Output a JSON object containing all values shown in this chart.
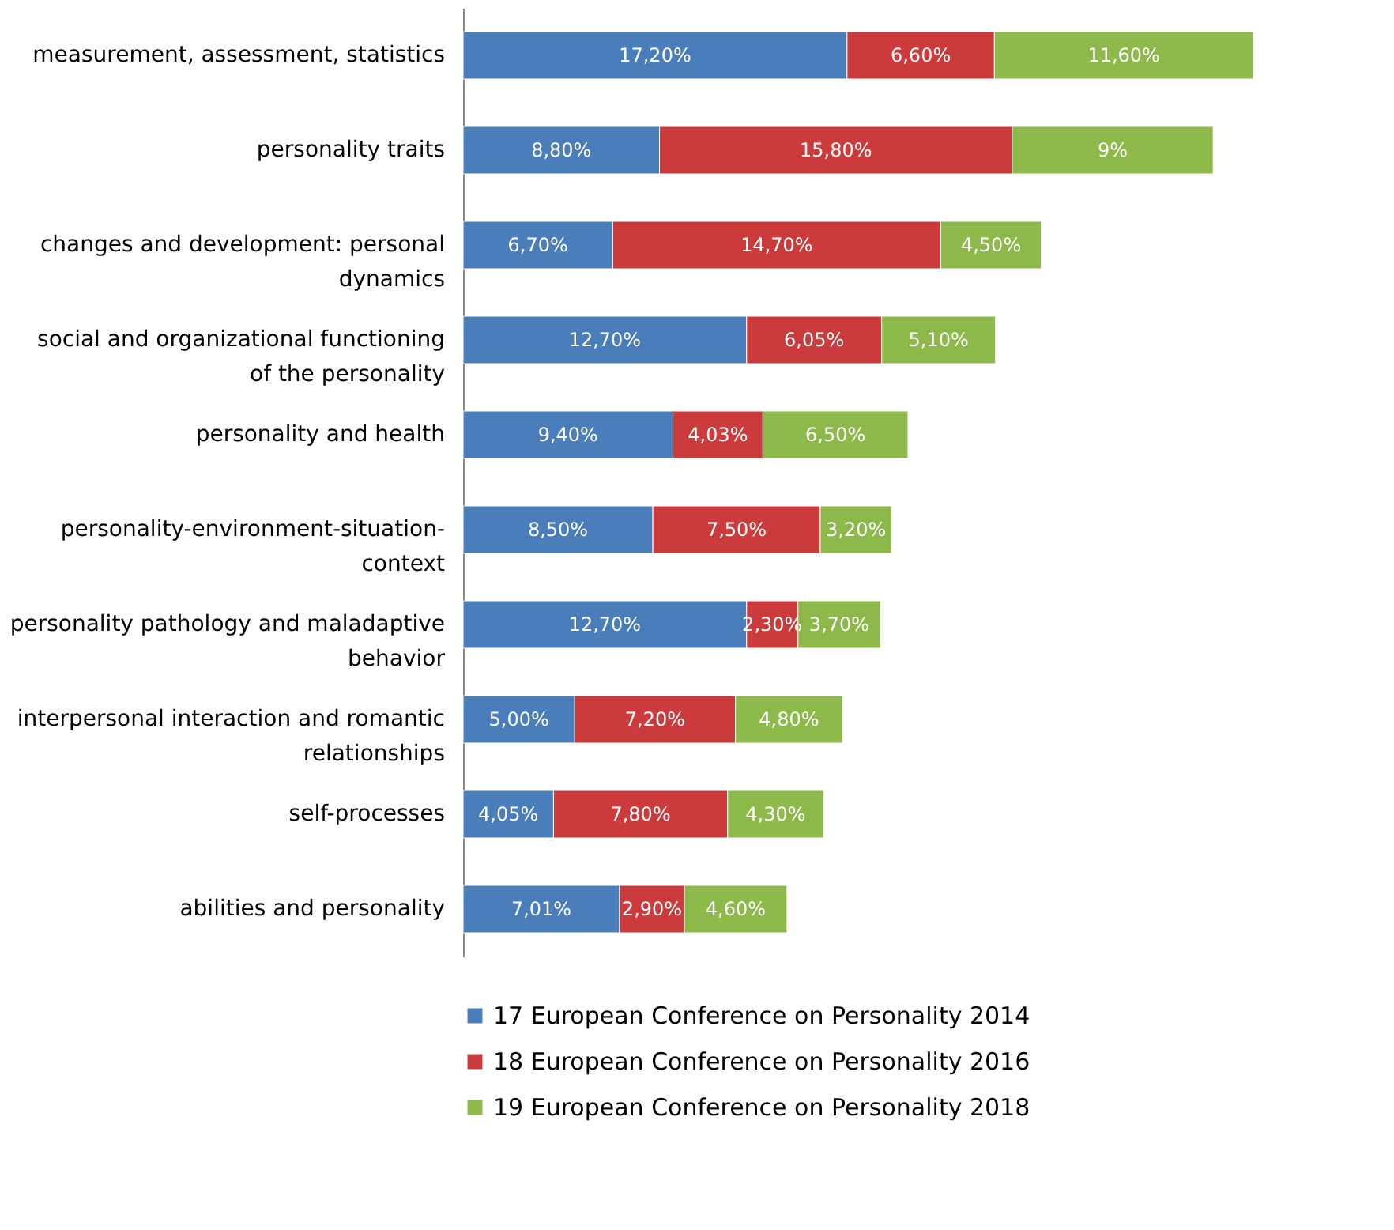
{
  "chart_data": {
    "type": "bar",
    "orientation": "horizontal",
    "stacked": true,
    "legend": "bottom",
    "tick_labels": "y",
    "grid": false,
    "categories": [
      "measurement, assessment, statistics",
      "personality traits",
      "changes and development: personal dynamics",
      "social and organizational functioning of the personality",
      "personality and health",
      "personality-environment-situation-context",
      "personality pathology and maladaptive behavior",
      "interpersonal interaction and romantic relationships",
      "self-processes",
      "abilities and personality"
    ],
    "series": [
      {
        "name": "17 European Conference on Personality 2014",
        "color": "#4a7ebb",
        "values": [
          17.2,
          8.8,
          6.7,
          12.7,
          9.4,
          8.5,
          12.7,
          5.0,
          4.05,
          7.01
        ],
        "value_labels": [
          "17,20%",
          "8,80%",
          "6,70%",
          "12,70%",
          "9,40%",
          "8,50%",
          "12,70%",
          "5,00%",
          "4,05%",
          "7,01%"
        ]
      },
      {
        "name": "18 European Conference on Personality 2016",
        "color": "#cc3b3b",
        "values": [
          6.6,
          15.8,
          14.7,
          6.05,
          4.03,
          7.5,
          2.3,
          7.2,
          7.8,
          2.9
        ],
        "value_labels": [
          "6,60%",
          "15,80%",
          "14,70%",
          "6,05%",
          "4,03%",
          "7,50%",
          "2,30%",
          "7,20%",
          "7,80%",
          "2,90%"
        ]
      },
      {
        "name": "19 European Conference on Personality 2018",
        "color": "#8db84a",
        "values": [
          11.6,
          9,
          4.5,
          5.1,
          6.5,
          3.2,
          3.7,
          4.8,
          4.3,
          4.6
        ],
        "value_labels": [
          "11,60%",
          "9%",
          "4,50%",
          "5,10%",
          "6,50%",
          "3,20%",
          "3,70%",
          "4,80%",
          "4,30%",
          "4,60%"
        ]
      }
    ]
  }
}
